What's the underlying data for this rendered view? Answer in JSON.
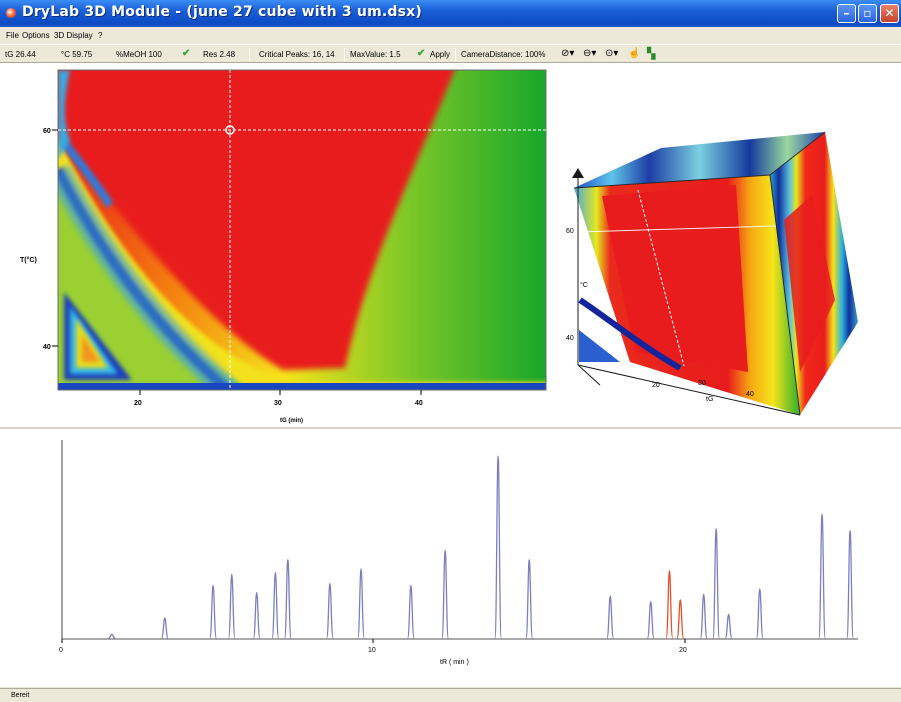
{
  "window": {
    "title": "DryLab 3D Module - (june 27 cube with 3 um.dsx)"
  },
  "menu": [
    "File",
    "Options",
    "3D Display",
    "?"
  ],
  "toolbar": {
    "tg": "tG 26.44",
    "temp": "°C 59.75",
    "meoh": "%MeOH 100",
    "res": "Res 2.48",
    "critical": "Critical Peaks: 16, 14",
    "maxvalue": "MaxValue: 1.5",
    "apply": "Apply",
    "camera": "CameraDistance: 100%"
  },
  "status": "Bereit",
  "resolution_map": {
    "ylabel": "T(°C)",
    "xlabel": "tG (min)",
    "xticks": [
      "20",
      "30",
      "40"
    ],
    "yticks": [
      "60",
      "40"
    ],
    "cursor": {
      "tg": 26.44,
      "temp": 59.75
    }
  },
  "cube": {
    "ylabel": "°C",
    "xlabel": "tG",
    "yticks": [
      "60",
      "40"
    ],
    "xticks": [
      "20",
      "30",
      "40"
    ]
  },
  "chromatogram": {
    "xlabel": "tR ( min )",
    "xticks": [
      "0",
      "10",
      "20"
    ],
    "colors": {
      "peak": "#7b7fc0",
      "critical": "#e0502a"
    }
  },
  "chart_data": {
    "type": "line",
    "title": "",
    "xlabel": "tR ( min )",
    "ylabel": "",
    "xlim": [
      0,
      25.5
    ],
    "ylim": [
      0,
      1
    ],
    "series": [
      {
        "values": [
          {
            "x": 1.6,
            "h": 0.02
          },
          {
            "x": 3.3,
            "h": 0.11
          },
          {
            "x": 4.85,
            "h": 0.29
          },
          {
            "x": 5.45,
            "h": 0.35
          },
          {
            "x": 6.25,
            "h": 0.25
          },
          {
            "x": 6.85,
            "h": 0.36
          },
          {
            "x": 7.25,
            "h": 0.43
          },
          {
            "x": 8.6,
            "h": 0.3
          },
          {
            "x": 9.6,
            "h": 0.38
          },
          {
            "x": 11.2,
            "h": 0.29
          },
          {
            "x": 12.3,
            "h": 0.48
          },
          {
            "x": 14.0,
            "h": 1.0
          },
          {
            "x": 15.0,
            "h": 0.43
          },
          {
            "x": 17.6,
            "h": 0.23
          },
          {
            "x": 18.9,
            "h": 0.2
          },
          {
            "x": 20.6,
            "h": 0.24
          },
          {
            "x": 21.0,
            "h": 0.6
          },
          {
            "x": 21.4,
            "h": 0.13
          },
          {
            "x": 22.4,
            "h": 0.27
          },
          {
            "x": 24.4,
            "h": 0.68
          },
          {
            "x": 25.3,
            "h": 0.59
          }
        ]
      },
      {
        "values": [
          {
            "x": 19.5,
            "h": 0.37
          },
          {
            "x": 19.85,
            "h": 0.21
          }
        ]
      }
    ]
  }
}
